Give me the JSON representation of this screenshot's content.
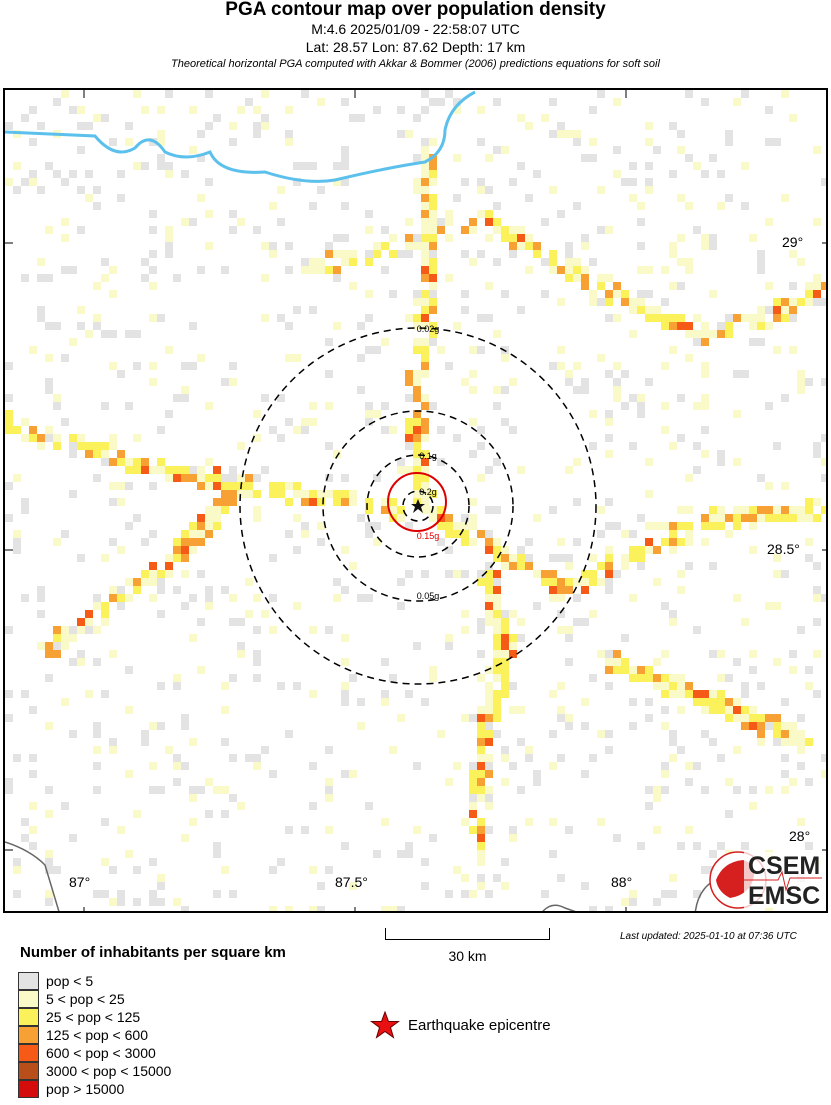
{
  "header": {
    "title": "PGA contour map over population density",
    "line1": "M:4.6 2025/01/09 - 22:58:07 UTC",
    "line2": "Lat: 28.57 Lon: 87.62 Depth: 17 km",
    "line3": "Theoretical horizontal PGA computed with Akkar & Bommer (2006) predictions equations for soft soil"
  },
  "map": {
    "lat_ticks": [
      "29°",
      "28.5°",
      "28°"
    ],
    "lon_ticks": [
      "87°",
      "87.5°",
      "88°"
    ],
    "contours": [
      {
        "label": "0.02g",
        "color": "#000000"
      },
      {
        "label": "0.05g",
        "color": "#000000"
      },
      {
        "label": "0.1g",
        "color": "#000000"
      },
      {
        "label": "0.15g",
        "color": "#dd0000"
      },
      {
        "label": "0.2g",
        "color": "#000000"
      }
    ],
    "river_color": "#5bc0eb",
    "border_color": "#666666",
    "epicentre_icon": "star-icon"
  },
  "scale": {
    "label": "30 km"
  },
  "updated": "Last updated: 2025-01-10 at 07:36 UTC",
  "logo": {
    "line1": "CSEM",
    "line2": "EMSC"
  },
  "legend": {
    "title": "Number of inhabitants per square km",
    "items": [
      {
        "label": "pop < 5",
        "color": "#e3e3e3"
      },
      {
        "label": "5 < pop < 25",
        "color": "#fafac8"
      },
      {
        "label": "25 < pop < 125",
        "color": "#fbf15a"
      },
      {
        "label": "125 < pop < 600",
        "color": "#f7a135"
      },
      {
        "label": "600 < pop < 3000",
        "color": "#f55b16"
      },
      {
        "label": "3000 < pop < 15000",
        "color": "#b84e1a"
      },
      {
        "label": "pop > 15000",
        "color": "#d40c0c"
      }
    ],
    "epicentre": "Earthquake epicentre"
  }
}
